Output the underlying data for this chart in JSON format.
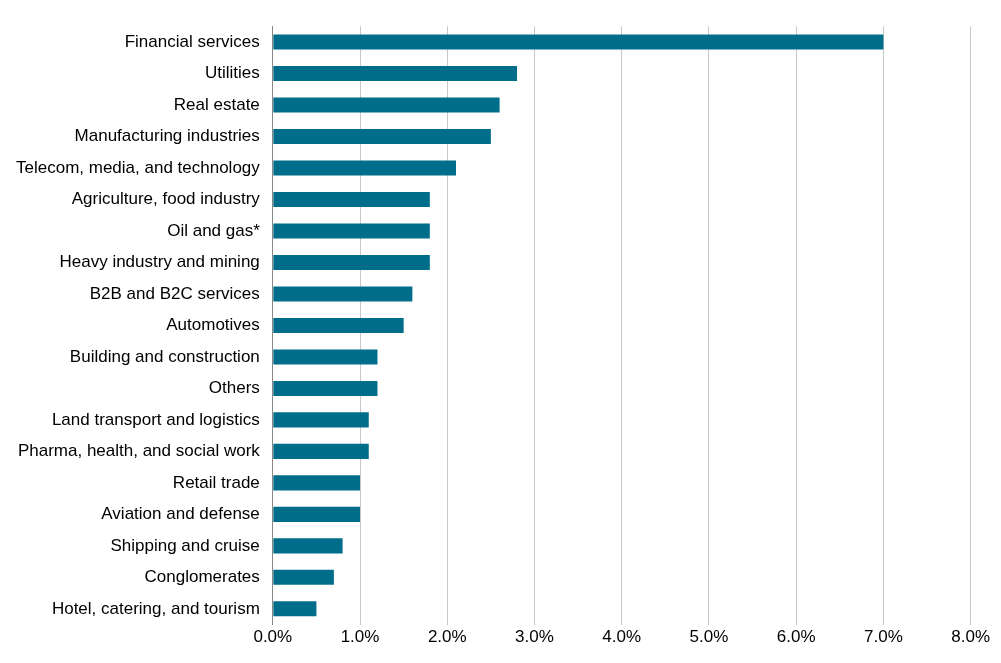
{
  "chart_data": {
    "type": "bar",
    "orientation": "horizontal",
    "categories": [
      "Financial services",
      "Utilities",
      "Real estate",
      "Manufacturing industries",
      "Telecom, media, and technology",
      "Agriculture, food industry",
      "Oil and gas*",
      "Heavy industry and mining",
      "B2B and B2C services",
      "Automotives",
      "Building and construction",
      "Others",
      "Land transport and logistics",
      "Pharma, health, and social work",
      "Retail trade",
      "Aviation and defense",
      "Shipping and cruise",
      "Conglomerates",
      "Hotel, catering, and tourism"
    ],
    "values": [
      7.0,
      2.8,
      2.6,
      2.5,
      2.1,
      1.8,
      1.8,
      1.8,
      1.6,
      1.5,
      1.2,
      1.2,
      1.1,
      1.1,
      1.0,
      1.0,
      0.8,
      0.7,
      0.5
    ],
    "color": "#006e8a",
    "xlim": [
      0,
      8
    ],
    "xticks": [
      {
        "value": 0,
        "label": "0.0%"
      },
      {
        "value": 1,
        "label": "1.0%"
      },
      {
        "value": 2,
        "label": "2.0%"
      },
      {
        "value": 3,
        "label": "3.0%"
      },
      {
        "value": 4,
        "label": "4.0%"
      },
      {
        "value": 5,
        "label": "5.0%"
      },
      {
        "value": 6,
        "label": "6.0%"
      },
      {
        "value": 7,
        "label": "7.0%"
      },
      {
        "value": 8,
        "label": "8.0%"
      }
    ],
    "grid": "x",
    "legend": false
  }
}
